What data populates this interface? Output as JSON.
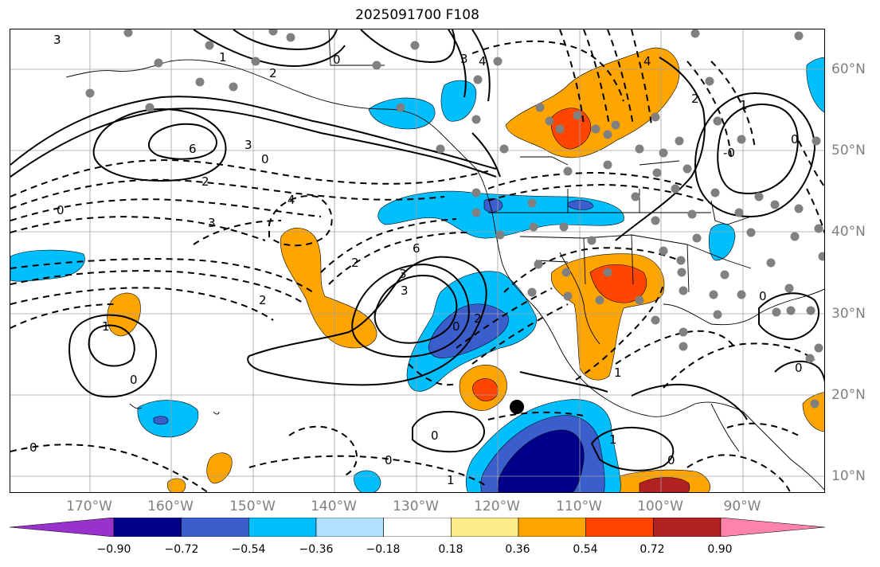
{
  "title": "2025091700 F108",
  "map": {
    "lon_labels": [
      "170°W",
      "160°W",
      "150°W",
      "140°W",
      "130°W",
      "120°W",
      "110°W",
      "100°W",
      "90°W"
    ],
    "lat_labels": [
      "60°N",
      "50°N",
      "40°N",
      "30°N",
      "20°N",
      "10°N"
    ],
    "contour_labels": [
      "3",
      "1",
      "2",
      "0",
      "4",
      "6",
      "3",
      "0",
      "3",
      "2",
      "0",
      "4",
      "3",
      "2",
      "6",
      "3",
      "0",
      "2",
      "0",
      "0",
      "1",
      "0",
      "1",
      "0",
      "3",
      "2",
      "4",
      "0",
      "1",
      "2",
      "1",
      "0",
      "0",
      "-0",
      "0",
      "1"
    ],
    "marker": "storm-center-dot"
  },
  "colorbar": {
    "tick_labels": [
      "−0.90",
      "−0.72",
      "−0.54",
      "−0.36",
      "−0.18",
      "0.18",
      "0.36",
      "0.54",
      "0.72",
      "0.90"
    ],
    "colors": [
      "#9932CC",
      "#00008B",
      "#3A5FCD",
      "#00BFFF",
      "#B0E2FF",
      "#FFFFFF",
      "#FFEC8B",
      "#FFA500",
      "#FF4500",
      "#B22222",
      "#FF82AB"
    ]
  },
  "colors": {
    "gridline": "#a0a0a0",
    "station_dot": "#808080",
    "axis_label": "#808080"
  }
}
